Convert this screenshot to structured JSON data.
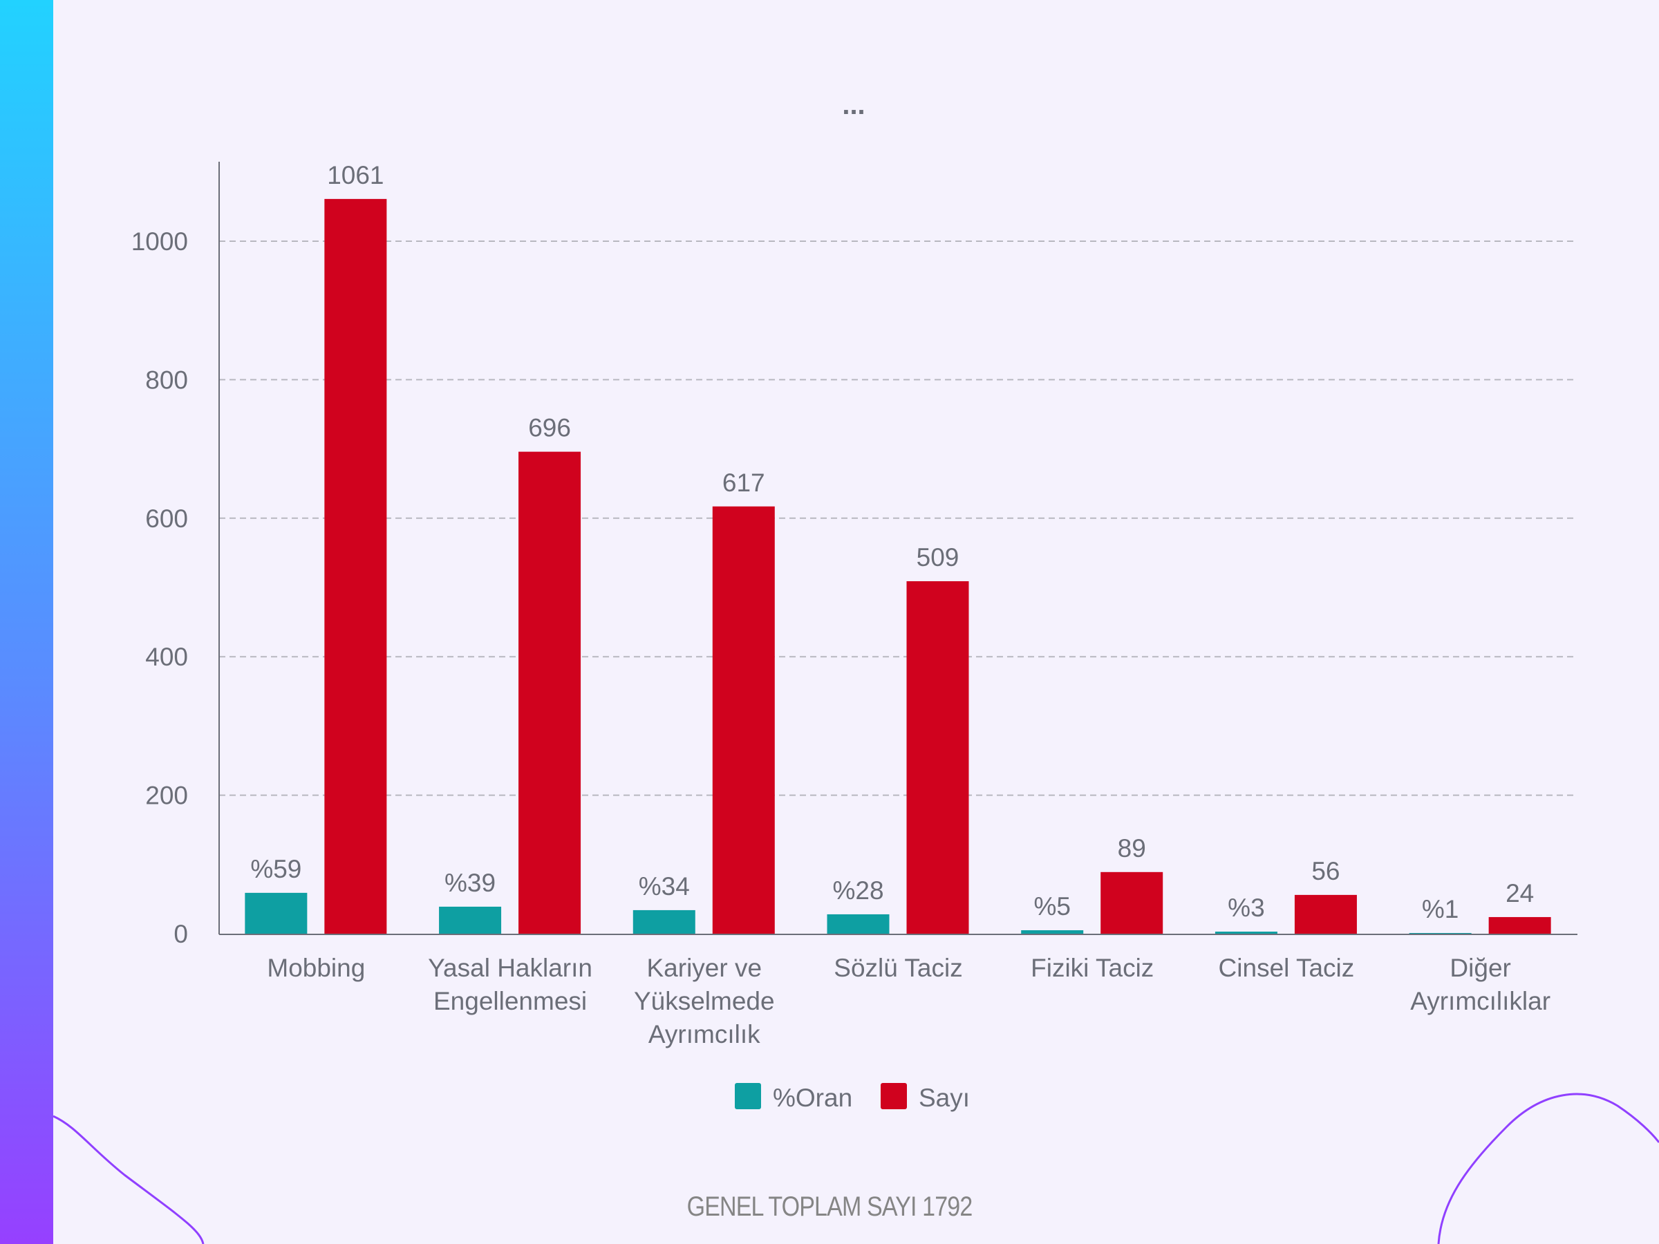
{
  "menu_label": "...",
  "footer": "GENEL TOPLAM SAYI 1792",
  "chart_data": {
    "type": "bar",
    "title": "",
    "xlabel": "",
    "ylabel": "",
    "ylim": [
      0,
      1000
    ],
    "yticks": [
      "0",
      "200",
      "400",
      "600",
      "800",
      "1000"
    ],
    "grid": true,
    "legend_position": "bottom",
    "categories": [
      [
        "Mobbing"
      ],
      [
        "Yasal Hakların",
        "Engellenmesi"
      ],
      [
        "Kariyer ve",
        "Yükselmede",
        "Ayrımcılık"
      ],
      [
        "Sözlü Taciz"
      ],
      [
        "Fiziki Taciz"
      ],
      [
        "Cinsel Taciz"
      ],
      [
        "Diğer",
        "Ayrımcılıklar"
      ]
    ],
    "series": [
      {
        "name": "%Oran",
        "color": "#0e9fa2",
        "values": [
          59,
          39,
          34,
          28,
          5,
          3,
          1
        ],
        "labels": [
          "%59",
          "%39",
          "%34",
          "%28",
          "%5",
          "%3",
          "%1"
        ]
      },
      {
        "name": "Sayı",
        "color": "#d0021e",
        "values": [
          1061,
          696,
          617,
          509,
          89,
          56,
          24
        ],
        "labels": [
          "1061",
          "696",
          "617",
          "509",
          "89",
          "56",
          "24"
        ]
      }
    ]
  }
}
